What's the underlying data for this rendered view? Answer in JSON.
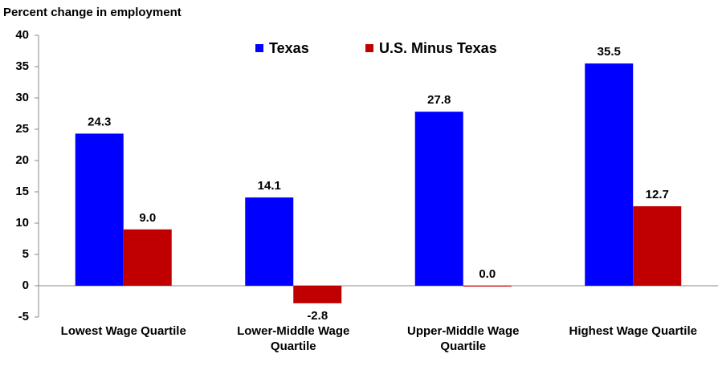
{
  "chart_data": {
    "type": "bar",
    "y_label": "Percent change in employment",
    "categories": [
      "Lowest Wage Quartile",
      "Lower-Middle Wage Quartile",
      "Upper-Middle Wage Quartile",
      "Highest Wage Quartile"
    ],
    "series": [
      {
        "name": "Texas",
        "color": "#0000ff",
        "values": [
          24.3,
          14.1,
          27.8,
          35.5
        ],
        "value_labels": [
          "24.3",
          "14.1",
          "27.8",
          "35.5"
        ]
      },
      {
        "name": "U.S. Minus Texas",
        "color": "#c00000",
        "values": [
          9.0,
          -2.8,
          0.0,
          12.7
        ],
        "value_labels": [
          "9.0",
          "-2.8",
          "0.0",
          "12.7"
        ]
      }
    ],
    "ylim": [
      -5,
      40
    ],
    "yticks": [
      -5,
      0,
      5,
      10,
      15,
      20,
      25,
      30,
      35,
      40
    ],
    "grid": false,
    "legend": "top"
  }
}
